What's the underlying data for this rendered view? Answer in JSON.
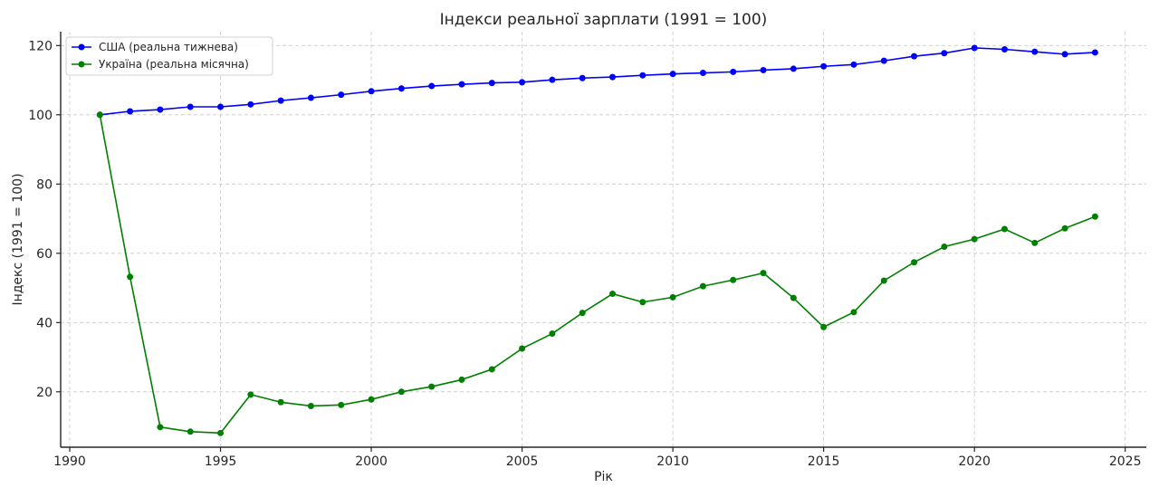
{
  "chart_data": {
    "type": "line",
    "title": "Індекси реальної зарплати (1991 = 100)",
    "xlabel": "Рік",
    "ylabel": "Індекс (1991 = 100)",
    "xlim": [
      1989.7,
      2025.7
    ],
    "ylim": [
      4,
      124
    ],
    "xticks": [
      1990,
      1995,
      2000,
      2005,
      2010,
      2015,
      2020,
      2025
    ],
    "yticks": [
      20,
      40,
      60,
      80,
      100,
      120
    ],
    "grid": true,
    "legend_position": "upper-left",
    "x": [
      1991,
      1992,
      1993,
      1994,
      1995,
      1996,
      1997,
      1998,
      1999,
      2000,
      2001,
      2002,
      2003,
      2004,
      2005,
      2006,
      2007,
      2008,
      2009,
      2010,
      2011,
      2012,
      2013,
      2014,
      2015,
      2016,
      2017,
      2018,
      2019,
      2020,
      2021,
      2022,
      2023,
      2024
    ],
    "series": [
      {
        "name": "США (реальна тижнева)",
        "color": "#0000ff",
        "values": [
          100,
          101,
          101.5,
          102.3,
          102.3,
          103,
          104.1,
          104.9,
          105.8,
          106.8,
          107.6,
          108.3,
          108.8,
          109.2,
          109.4,
          110.1,
          110.6,
          110.9,
          111.4,
          111.8,
          112.1,
          112.4,
          112.9,
          113.3,
          114,
          114.5,
          115.6,
          116.9,
          117.8,
          119.3,
          118.9,
          118.2,
          117.5,
          118
        ],
        "marker_color": "#0000ff"
      },
      {
        "name": "Україна (реальна місячна)",
        "color": "#008000",
        "values": [
          100,
          53.2,
          9.8,
          8.5,
          8.1,
          19.2,
          17,
          15.9,
          16.2,
          17.8,
          20,
          21.5,
          23.5,
          26.5,
          32.5,
          36.8,
          42.8,
          48.3,
          45.9,
          47.3,
          50.5,
          52.3,
          54.3,
          47.1,
          38.7,
          43,
          52.1,
          57.4,
          61.9,
          64.1,
          67,
          63,
          67.2,
          70.6
        ],
        "marker_color": "#008000"
      }
    ]
  }
}
